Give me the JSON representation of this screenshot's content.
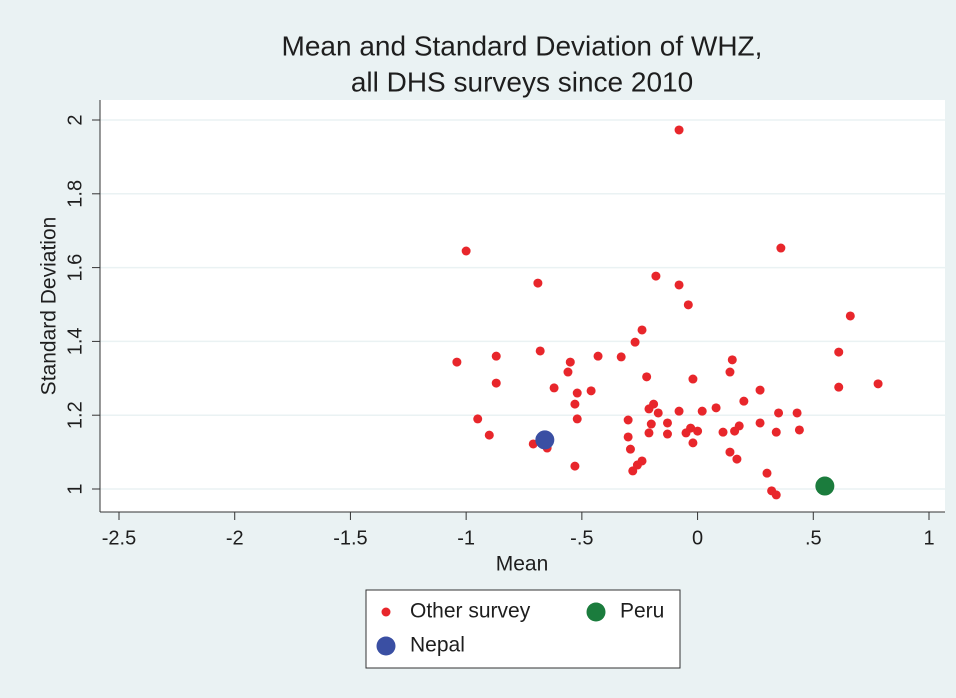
{
  "chart_data": {
    "type": "scatter",
    "title": [
      "Mean and Standard Deviation of WHZ,",
      "all DHS surveys since 2010"
    ],
    "x_label": "Mean",
    "y_label": "Standard Deviation",
    "xlim": [
      -2.5,
      1
    ],
    "ylim": [
      0.97,
      2.03
    ],
    "xticks": [
      -2.5,
      -2,
      -1.5,
      -1,
      {
        "value": -0.5,
        "label": "-.5"
      },
      0,
      {
        "value": 0.5,
        "label": ".5"
      },
      1
    ],
    "yticks": [
      1,
      1.2,
      1.4,
      1.6,
      1.8,
      2
    ],
    "grid": true,
    "series": [
      {
        "name": "Other survey",
        "color": "#e8262b",
        "marker": "small",
        "x": [
          -0.08,
          -1.0,
          0.36,
          -0.69,
          -0.18,
          -0.08,
          -0.04,
          0.66,
          -0.24,
          -0.27,
          -0.68,
          -0.87,
          -0.55,
          -0.43,
          -0.33,
          -1.04,
          0.61,
          0.15,
          -0.56,
          0.14,
          -0.22,
          -0.02,
          -0.87,
          0.78,
          0.61,
          -0.62,
          -0.46,
          0.27,
          -0.52,
          0.2,
          -0.53,
          0.08,
          -0.19,
          -0.21,
          -0.17,
          -0.08,
          0.02,
          0.35,
          0.43,
          -0.95,
          -0.52,
          -0.3,
          -0.13,
          -0.2,
          0.27,
          0.18,
          -0.03,
          0.0,
          0.16,
          0.11,
          -0.05,
          0.34,
          0.44,
          -0.21,
          -0.13,
          -0.9,
          -0.3,
          -0.02,
          -0.71,
          -0.65,
          -0.29,
          0.14,
          0.17,
          -0.24,
          -0.26,
          -0.53,
          -0.28,
          0.3,
          0.32,
          0.34
        ],
        "values": [
          1.973,
          1.645,
          1.653,
          1.558,
          1.577,
          1.553,
          1.499,
          1.469,
          1.431,
          1.398,
          1.374,
          1.36,
          1.344,
          1.36,
          1.358,
          1.344,
          1.371,
          1.35,
          1.317,
          1.317,
          1.304,
          1.298,
          1.287,
          1.285,
          1.276,
          1.274,
          1.266,
          1.268,
          1.26,
          1.238,
          1.23,
          1.22,
          1.23,
          1.217,
          1.206,
          1.211,
          1.211,
          1.206,
          1.206,
          1.19,
          1.19,
          1.187,
          1.179,
          1.176,
          1.179,
          1.171,
          1.165,
          1.157,
          1.157,
          1.154,
          1.152,
          1.154,
          1.16,
          1.152,
          1.149,
          1.146,
          1.141,
          1.125,
          1.122,
          1.111,
          1.108,
          1.1,
          1.081,
          1.076,
          1.065,
          1.062,
          1.049,
          1.043,
          0.995,
          0.984
        ]
      },
      {
        "name": "Peru",
        "color": "#1b7c3d",
        "marker": "large",
        "x": [
          0.55
        ],
        "values": [
          1.008
        ]
      },
      {
        "name": "Nepal",
        "color": "#3a4fa3",
        "marker": "large",
        "x": [
          -0.66
        ],
        "values": [
          1.133
        ]
      }
    ]
  }
}
